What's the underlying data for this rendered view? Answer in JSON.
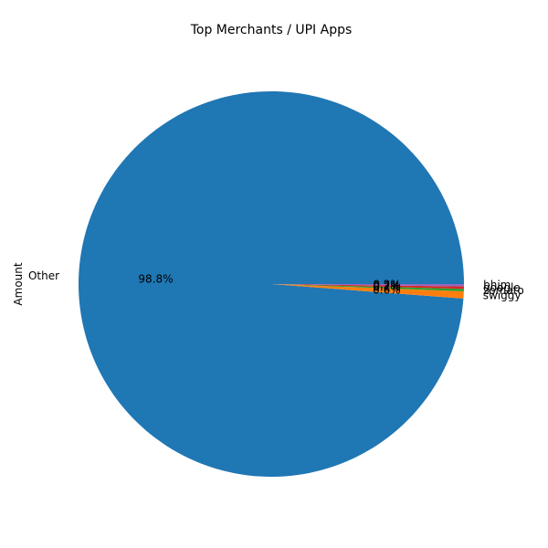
{
  "chart_data": {
    "type": "pie",
    "title": "Top Merchants / UPI Apps",
    "ylabel": "Amount",
    "labels": [
      "Other",
      "swiggy",
      "zomato",
      "google",
      "bhim"
    ],
    "values": [
      98.8,
      0.6,
      0.2,
      0.2,
      0.2
    ],
    "autopct": [
      "98.8%",
      "0.6%",
      "0.2%",
      "0.2%",
      "0.2%"
    ],
    "colors": [
      "#1f77b4",
      "#ff7f0e",
      "#2ca02c",
      "#d62728",
      "#9467bd"
    ]
  }
}
